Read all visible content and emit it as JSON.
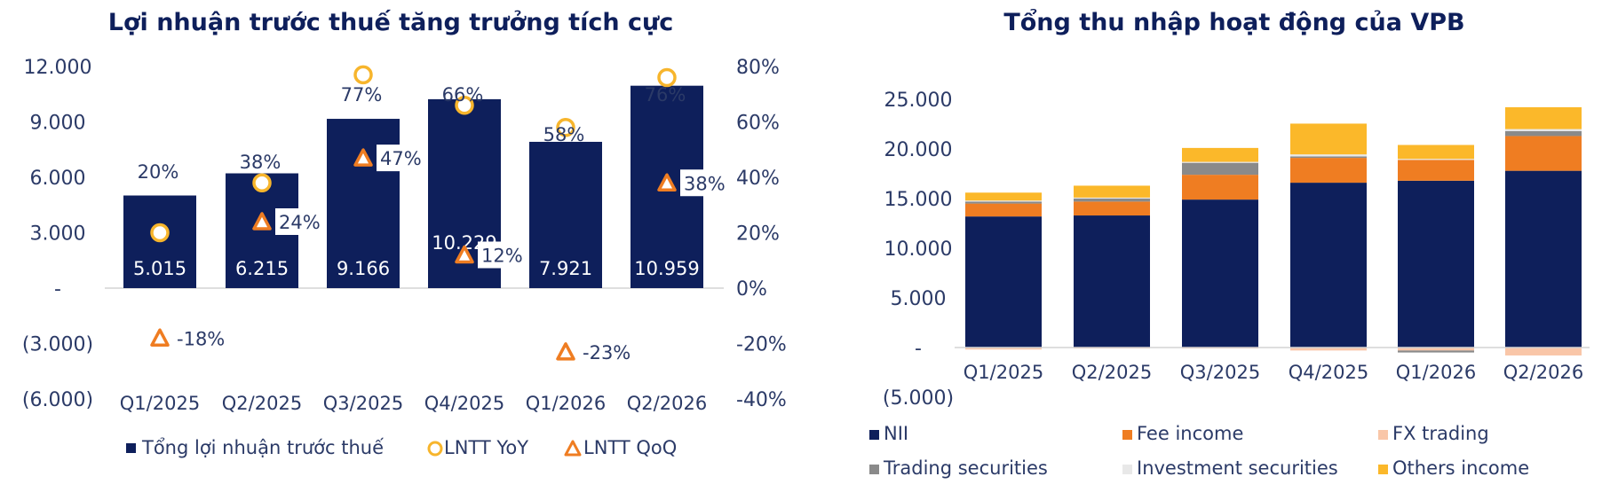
{
  "chart_data": [
    {
      "type": "bar",
      "title": "Lợi nhuận trước thuế tăng trưởng tích cực",
      "categories": [
        "Q1/2025",
        "Q2/2025",
        "Q3/2025",
        "Q4/2025",
        "Q1/2026",
        "Q2/2026"
      ],
      "y_left_ticks": [
        "12.000",
        "9.000",
        "6.000",
        "3.000",
        "-",
        "(3.000)",
        "(6.000)"
      ],
      "y_right_ticks": [
        "80%",
        "60%",
        "40%",
        "20%",
        "0%",
        "-20%",
        "-40%"
      ],
      "ylim_left": [
        -6000,
        12000
      ],
      "ylim_right": [
        -40,
        80
      ],
      "series": [
        {
          "name": "Tổng lợi nhuận trước thuế",
          "type": "bar",
          "values": [
            5015,
            6215,
            9166,
            10229,
            7921,
            10959
          ],
          "labels": [
            "5.015",
            "6.215",
            "9.166",
            "10.229",
            "7.921",
            "10.959"
          ],
          "color": "#0e1f5b"
        },
        {
          "name": "LNTT YoY",
          "type": "marker-circle",
          "values": [
            20,
            38,
            77,
            66,
            58,
            76
          ],
          "labels": [
            "20%",
            "38%",
            "77%",
            "66%",
            "58%",
            "76%"
          ],
          "color": "#f7b52c"
        },
        {
          "name": "LNTT QoQ",
          "type": "marker-triangle",
          "values": [
            -18,
            24,
            47,
            12,
            -23,
            38
          ],
          "labels": [
            "-18%",
            "24%",
            "47%",
            "12%",
            "-23%",
            "38%"
          ],
          "color": "#ef7d22"
        }
      ],
      "legend_position": "bottom"
    },
    {
      "type": "bar",
      "stacked": true,
      "title": "Tổng thu nhập hoạt động của VPB",
      "categories": [
        "Q1/2025",
        "Q2/2025",
        "Q3/2025",
        "Q4/2025",
        "Q1/2026",
        "Q2/2026"
      ],
      "y_ticks": [
        "25.000",
        "20.000",
        "15.000",
        "10.000",
        "5.000",
        "-",
        "(5.000)"
      ],
      "ylim": [
        -5000,
        25000
      ],
      "series": [
        {
          "name": "NII",
          "values": [
            13200,
            13300,
            14900,
            16600,
            16800,
            17800
          ],
          "color": "#0e1f5b"
        },
        {
          "name": "Fee income",
          "values": [
            1300,
            1400,
            2500,
            2500,
            2100,
            3500
          ],
          "color": "#ef7d22"
        },
        {
          "name": "FX trading",
          "values": [
            -200,
            -100,
            -100,
            -300,
            -300,
            -800
          ],
          "color": "#f9c6a8"
        },
        {
          "name": "Trading securities",
          "values": [
            200,
            300,
            1200,
            150,
            -200,
            500
          ],
          "color": "#8a8a8a"
        },
        {
          "name": "Investment securities",
          "values": [
            100,
            100,
            100,
            200,
            100,
            200
          ],
          "color": "#e8e8e8"
        },
        {
          "name": "Others income",
          "values": [
            800,
            1200,
            1400,
            3100,
            1400,
            2200
          ],
          "color": "#fbb82a"
        }
      ],
      "legend_position": "bottom"
    }
  ]
}
